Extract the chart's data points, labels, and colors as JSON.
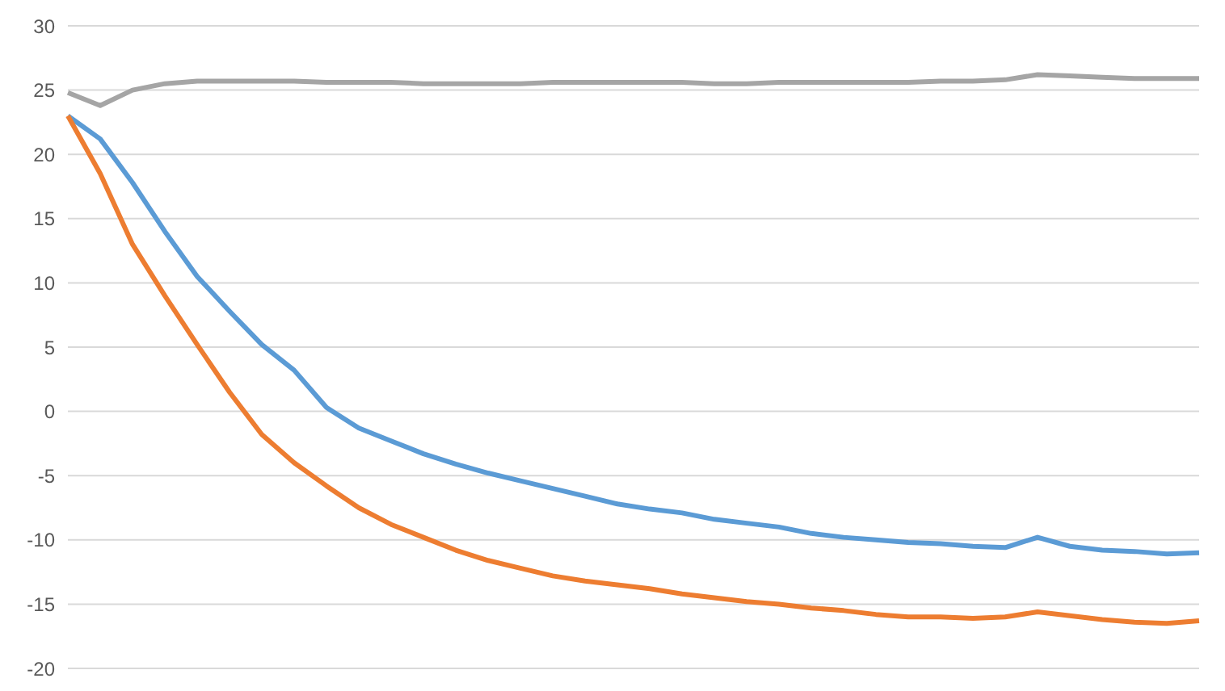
{
  "chart_data": {
    "type": "line",
    "categories": [
      null,
      null,
      null,
      null,
      null,
      null,
      null,
      null,
      null,
      null,
      null,
      null,
      null,
      null,
      null,
      null,
      null,
      null,
      null,
      null,
      null,
      null,
      null,
      null,
      null,
      null,
      null,
      null,
      null,
      null,
      null,
      null,
      null,
      null,
      null,
      null
    ],
    "series": [
      {
        "color": "#5b9bd5",
        "values": [
          23,
          21.2,
          17.8,
          14,
          10.5,
          7.8,
          5.2,
          3.2,
          0.3,
          -1.3,
          -2.3,
          -3.3,
          -4.1,
          -4.8,
          -5.4,
          -6,
          -6.6,
          -7.2,
          -7.6,
          -7.9,
          -8.4,
          -8.7,
          -9,
          -9.5,
          -9.8,
          -10,
          -10.2,
          -10.3,
          -10.5,
          -10.6,
          -9.8,
          -10.5,
          -10.8,
          -10.9,
          -11.1,
          -11
        ]
      },
      {
        "color": "#ed7d31",
        "values": [
          23,
          18.5,
          13,
          9,
          5.2,
          1.5,
          -1.8,
          -4,
          -5.8,
          -7.5,
          -8.8,
          -9.8,
          -10.8,
          -11.6,
          -12.2,
          -12.8,
          -13.2,
          -13.5,
          -13.8,
          -14.2,
          -14.5,
          -14.8,
          -15,
          -15.3,
          -15.5,
          -15.8,
          -16,
          -16,
          -16.1,
          -16,
          -15.6,
          -15.9,
          -16.2,
          -16.4,
          -16.5,
          -16.3
        ]
      },
      {
        "color": "#a5a5a5",
        "values": [
          24.8,
          23.8,
          25,
          25.5,
          25.7,
          25.7,
          25.7,
          25.7,
          25.6,
          25.6,
          25.6,
          25.5,
          25.5,
          25.5,
          25.5,
          25.6,
          25.6,
          25.6,
          25.6,
          25.6,
          25.5,
          25.5,
          25.6,
          25.6,
          25.6,
          25.6,
          25.6,
          25.7,
          25.7,
          25.8,
          26.2,
          26.1,
          26,
          25.9,
          25.9,
          25.9
        ]
      }
    ],
    "ylim": [
      -20,
      30
    ],
    "yticks": [
      -20,
      -15,
      -10,
      -5,
      0,
      5,
      10,
      15,
      20,
      25,
      30
    ],
    "grid": "y",
    "tick_labels": "y",
    "marker": "none",
    "line_style": "solid"
  }
}
